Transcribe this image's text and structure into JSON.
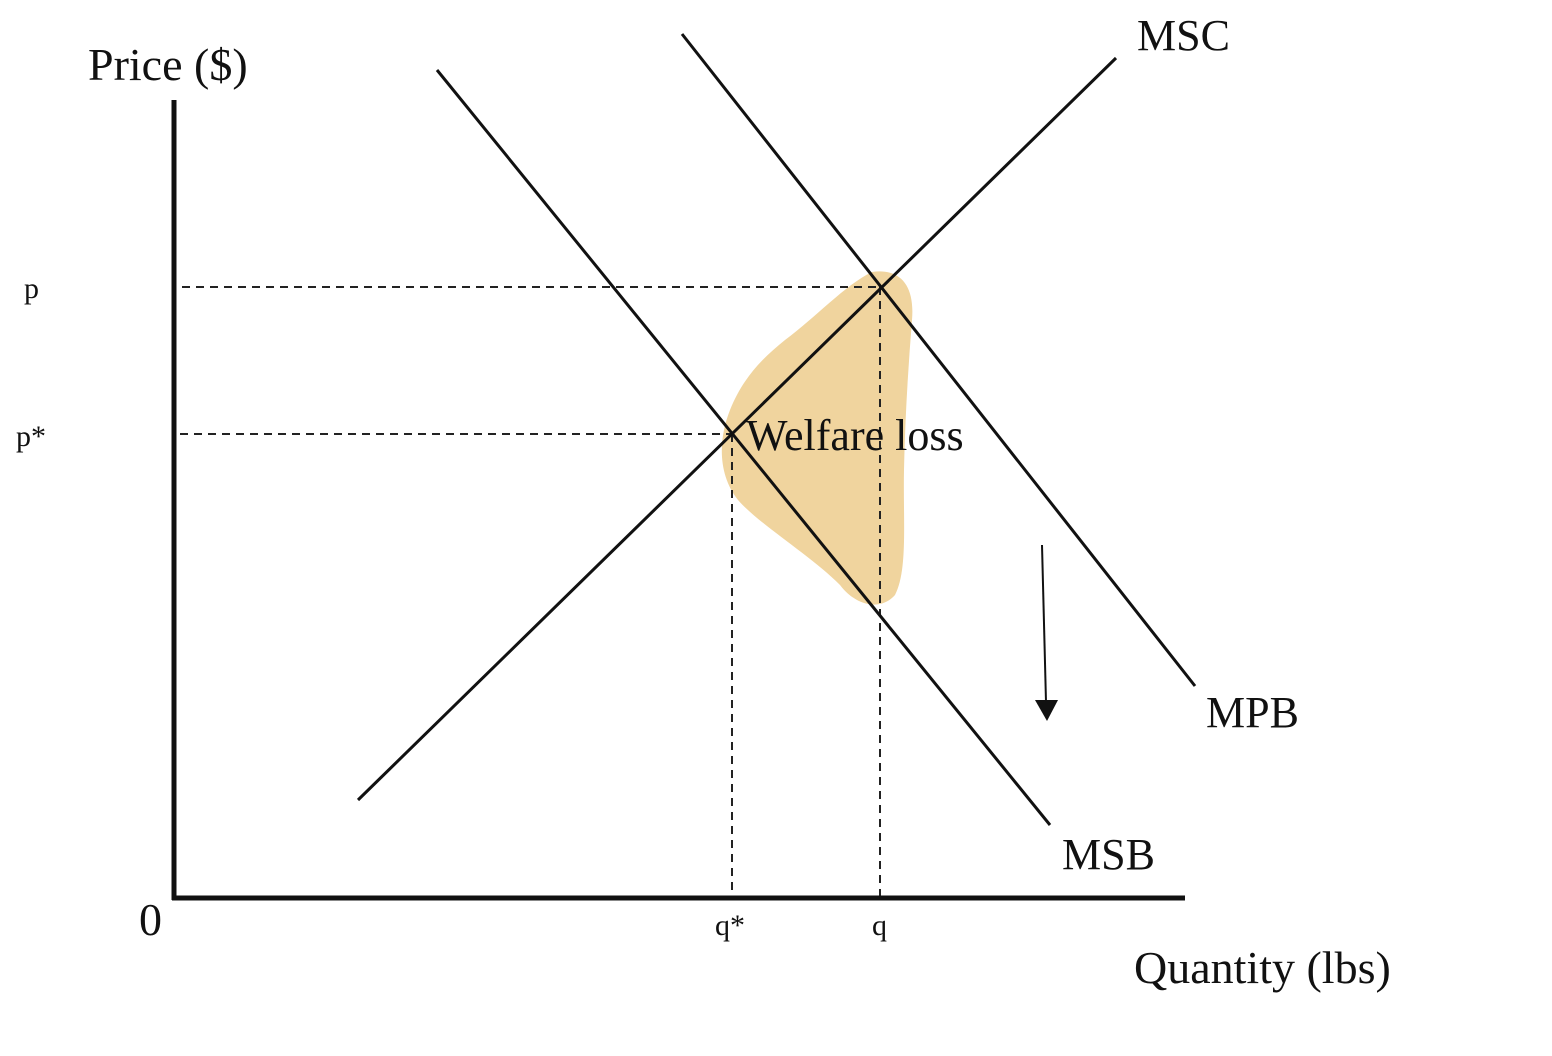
{
  "diagram": {
    "y_axis_label": "Price ($)",
    "x_axis_label": "Quantity (lbs)",
    "origin_label": "0",
    "price_labels": {
      "p": "p",
      "p_star": "p*"
    },
    "quantity_labels": {
      "q_star": "q*",
      "q": "q"
    },
    "curves": {
      "msc": "MSC",
      "mpb": "MPB",
      "msb": "MSB"
    },
    "area_label": "Welfare loss",
    "colors": {
      "welfare_loss_fill": "#f0d49e",
      "line": "#111111"
    },
    "arrow": {
      "direction": "down"
    }
  }
}
